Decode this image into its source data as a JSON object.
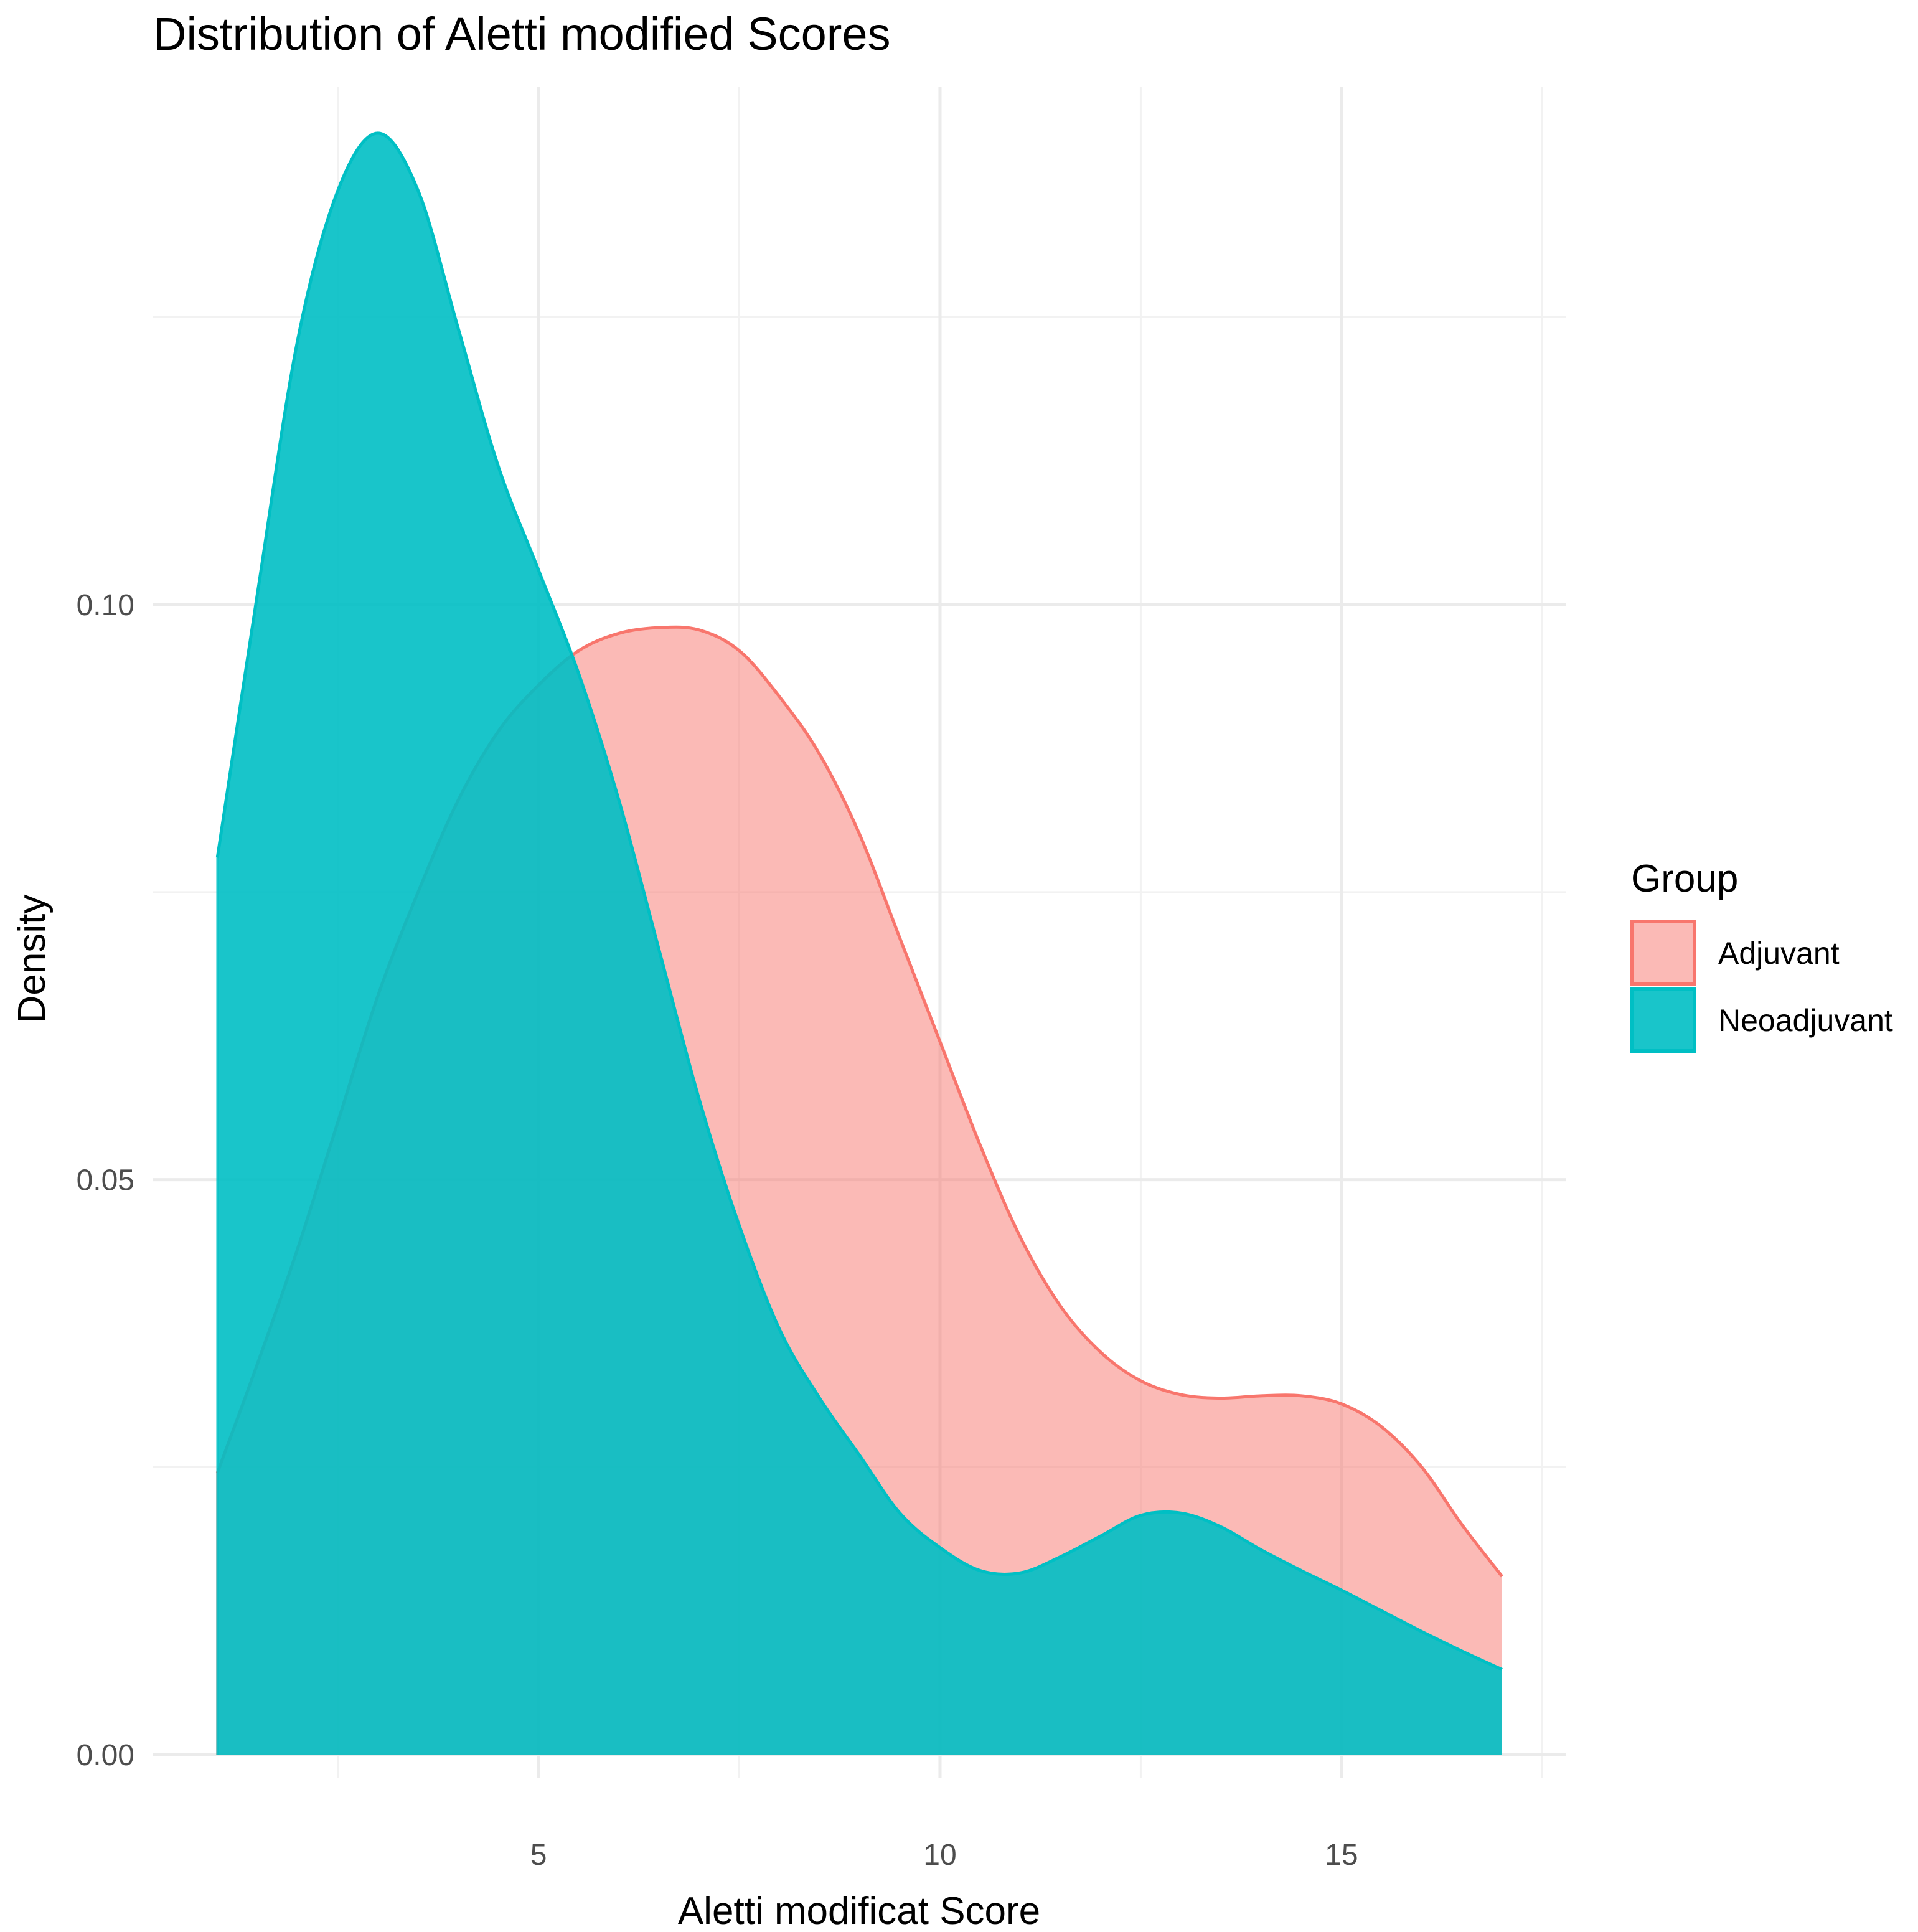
{
  "chart_data": {
    "type": "area",
    "subtype": "density",
    "title": "Distribution of Aletti modified Scores",
    "xlabel": "Aletti modificat Score",
    "ylabel": "Density",
    "xlim": [
      0.2,
      17.8
    ],
    "ylim": [
      -0.002,
      0.145
    ],
    "x_ticks": [
      5,
      10,
      15
    ],
    "x_tick_labels": [
      "5",
      "10",
      "15"
    ],
    "x_minor_ticks": [
      2.5,
      7.5,
      12.5,
      17.5
    ],
    "y_ticks": [
      0.0,
      0.05,
      0.1
    ],
    "y_tick_labels": [
      "0.00",
      "0.05",
      "0.10"
    ],
    "y_minor_ticks": [
      0.025,
      0.075,
      0.125
    ],
    "grid": true,
    "legend": {
      "title": "Group",
      "position": "right",
      "entries": [
        "Adjuvant",
        "Neoadjuvant"
      ]
    },
    "series": [
      {
        "name": "Adjuvant",
        "color": "#f8766d",
        "fill_opacity": 0.5,
        "x": [
          1,
          1.5,
          2,
          2.5,
          3,
          3.5,
          4,
          4.5,
          5,
          5.5,
          6,
          6.5,
          7,
          7.5,
          8,
          8.5,
          9,
          9.5,
          10,
          10.5,
          11,
          11.5,
          12,
          12.5,
          13,
          13.5,
          14,
          14.5,
          15,
          15.5,
          16,
          16.5,
          17
        ],
        "y": [
          0.0245,
          0.034,
          0.044,
          0.055,
          0.066,
          0.075,
          0.083,
          0.089,
          0.093,
          0.096,
          0.0975,
          0.098,
          0.0978,
          0.096,
          0.092,
          0.087,
          0.08,
          0.071,
          0.062,
          0.053,
          0.045,
          0.039,
          0.035,
          0.0325,
          0.0313,
          0.031,
          0.0312,
          0.0312,
          0.0305,
          0.0285,
          0.025,
          0.02,
          0.0155
        ]
      },
      {
        "name": "Neoadjuvant",
        "color": "#00bfc4",
        "fill_opacity": 0.9,
        "x": [
          1,
          1.5,
          2,
          2.5,
          3,
          3.5,
          4,
          4.5,
          5,
          5.5,
          6,
          6.5,
          7,
          7.5,
          8,
          8.5,
          9,
          9.5,
          10,
          10.5,
          11,
          11.5,
          12,
          12.5,
          13,
          13.5,
          14,
          14.5,
          15,
          15.5,
          16,
          16.5,
          17
        ],
        "y": [
          0.078,
          0.101,
          0.123,
          0.136,
          0.141,
          0.136,
          0.124,
          0.112,
          0.103,
          0.094,
          0.083,
          0.07,
          0.057,
          0.046,
          0.037,
          0.031,
          0.026,
          0.021,
          0.018,
          0.016,
          0.0158,
          0.0172,
          0.019,
          0.0208,
          0.021,
          0.0198,
          0.0178,
          0.016,
          0.0143,
          0.0125,
          0.0107,
          0.009,
          0.0074
        ]
      }
    ]
  }
}
